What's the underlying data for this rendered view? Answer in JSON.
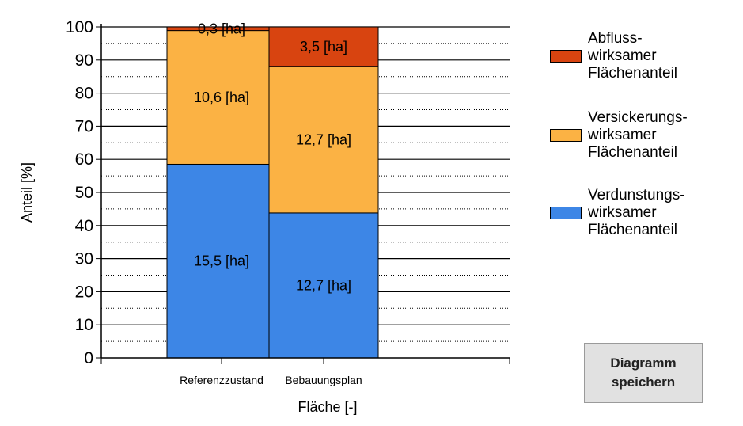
{
  "chart_data": {
    "type": "bar",
    "stacked": true,
    "categories": [
      "Referenzzustand",
      "Bebauungsplan"
    ],
    "series": [
      {
        "name": "Verdunstungs- wirksamer Flächenanteil",
        "color": "#3d86e6",
        "values": [
          58.5,
          43.8
        ],
        "labels": [
          "15,5 [ha]",
          "12,7 [ha]"
        ]
      },
      {
        "name": "Versickerungs- wirksamer Flächenanteil",
        "color": "#fbb244",
        "values": [
          40.4,
          44.3
        ],
        "labels": [
          "10,6 [ha]",
          "12,7 [ha]"
        ]
      },
      {
        "name": "Abfluss- wirksamer Flächenanteil",
        "color": "#d84410",
        "values": [
          1.1,
          11.9
        ],
        "labels": [
          "0,3 [ha]",
          "3,5 [ha]"
        ]
      }
    ],
    "xlabel": "Fläche [-]",
    "ylabel": "Anteil [%]",
    "ylim": [
      0,
      100
    ],
    "yticks": [
      0,
      10,
      20,
      30,
      40,
      50,
      60,
      70,
      80,
      90,
      100
    ],
    "grid": true
  },
  "legend": {
    "items": [
      {
        "lines": [
          "Abfluss-",
          "wirksamer",
          "Flächenanteil"
        ],
        "color": "#d84410"
      },
      {
        "lines": [
          "Versickerungs-",
          "wirksamer",
          "Flächenanteil"
        ],
        "color": "#fbb244"
      },
      {
        "lines": [
          "Verdunstungs-",
          "wirksamer",
          "Flächenanteil"
        ],
        "color": "#3d86e6"
      }
    ]
  },
  "save_button": {
    "line1": "Diagramm",
    "line2": "speichern"
  }
}
